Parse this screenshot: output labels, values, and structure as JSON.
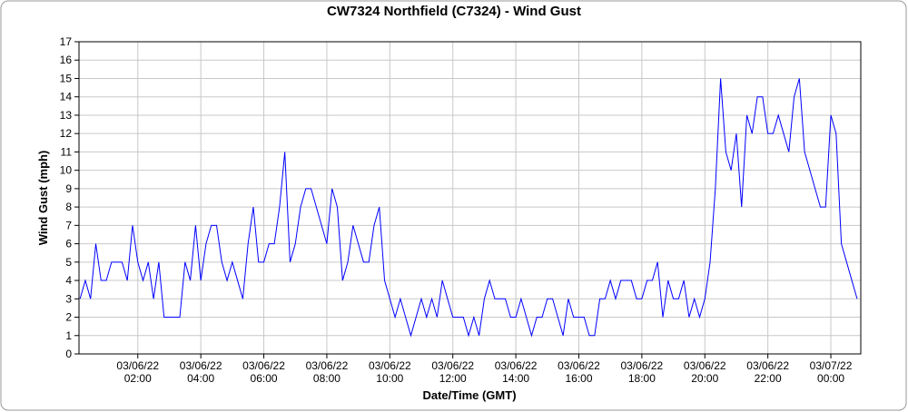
{
  "chart_data": {
    "type": "line",
    "title": "CW7324 Northfield (C7324) - Wind Gust",
    "x_label": "Date/Time (GMT)",
    "y_label": "Wind Gust (mph)",
    "x": [
      "03/06/22 00:10",
      "03/06/22 00:20",
      "03/06/22 00:30",
      "03/06/22 00:40",
      "03/06/22 00:50",
      "03/06/22 01:00",
      "03/06/22 01:10",
      "03/06/22 01:20",
      "03/06/22 01:30",
      "03/06/22 01:40",
      "03/06/22 01:50",
      "03/06/22 02:00",
      "03/06/22 02:10",
      "03/06/22 02:20",
      "03/06/22 02:30",
      "03/06/22 02:40",
      "03/06/22 02:50",
      "03/06/22 03:00",
      "03/06/22 03:10",
      "03/06/22 03:20",
      "03/06/22 03:30",
      "03/06/22 03:40",
      "03/06/22 03:50",
      "03/06/22 04:00",
      "03/06/22 04:10",
      "03/06/22 04:20",
      "03/06/22 04:30",
      "03/06/22 04:40",
      "03/06/22 04:50",
      "03/06/22 05:00",
      "03/06/22 05:10",
      "03/06/22 05:20",
      "03/06/22 05:30",
      "03/06/22 05:40",
      "03/06/22 05:50",
      "03/06/22 06:00",
      "03/06/22 06:10",
      "03/06/22 06:20",
      "03/06/22 06:30",
      "03/06/22 06:40",
      "03/06/22 06:50",
      "03/06/22 07:00",
      "03/06/22 07:10",
      "03/06/22 07:20",
      "03/06/22 07:30",
      "03/06/22 07:40",
      "03/06/22 07:50",
      "03/06/22 08:00",
      "03/06/22 08:10",
      "03/06/22 08:20",
      "03/06/22 08:30",
      "03/06/22 08:40",
      "03/06/22 08:50",
      "03/06/22 09:00",
      "03/06/22 09:10",
      "03/06/22 09:20",
      "03/06/22 09:30",
      "03/06/22 09:40",
      "03/06/22 09:50",
      "03/06/22 10:00",
      "03/06/22 10:10",
      "03/06/22 10:20",
      "03/06/22 10:30",
      "03/06/22 10:40",
      "03/06/22 10:50",
      "03/06/22 11:00",
      "03/06/22 11:10",
      "03/06/22 11:20",
      "03/06/22 11:30",
      "03/06/22 11:40",
      "03/06/22 11:50",
      "03/06/22 12:00",
      "03/06/22 12:10",
      "03/06/22 12:20",
      "03/06/22 12:30",
      "03/06/22 12:40",
      "03/06/22 12:50",
      "03/06/22 13:00",
      "03/06/22 13:10",
      "03/06/22 13:20",
      "03/06/22 13:30",
      "03/06/22 13:40",
      "03/06/22 13:50",
      "03/06/22 14:00",
      "03/06/22 14:10",
      "03/06/22 14:20",
      "03/06/22 14:30",
      "03/06/22 14:40",
      "03/06/22 14:50",
      "03/06/22 15:00",
      "03/06/22 15:10",
      "03/06/22 15:20",
      "03/06/22 15:30",
      "03/06/22 15:40",
      "03/06/22 15:50",
      "03/06/22 16:00",
      "03/06/22 16:10",
      "03/06/22 16:20",
      "03/06/22 16:30",
      "03/06/22 16:40",
      "03/06/22 16:50",
      "03/06/22 17:00",
      "03/06/22 17:10",
      "03/06/22 17:20",
      "03/06/22 17:30",
      "03/06/22 17:40",
      "03/06/22 17:50",
      "03/06/22 18:00",
      "03/06/22 18:10",
      "03/06/22 18:20",
      "03/06/22 18:30",
      "03/06/22 18:40",
      "03/06/22 18:50",
      "03/06/22 19:00",
      "03/06/22 19:10",
      "03/06/22 19:20",
      "03/06/22 19:30",
      "03/06/22 19:40",
      "03/06/22 19:50",
      "03/06/22 20:00",
      "03/06/22 20:10",
      "03/06/22 20:20",
      "03/06/22 20:30",
      "03/06/22 20:40",
      "03/06/22 20:50",
      "03/06/22 21:00",
      "03/06/22 21:10",
      "03/06/22 21:20",
      "03/06/22 21:30",
      "03/06/22 21:40",
      "03/06/22 21:50",
      "03/06/22 22:00",
      "03/06/22 22:10",
      "03/06/22 22:20",
      "03/06/22 22:30",
      "03/06/22 22:40",
      "03/06/22 22:50",
      "03/06/22 23:00",
      "03/06/22 23:10",
      "03/06/22 23:20",
      "03/06/22 23:30",
      "03/06/22 23:40",
      "03/06/22 23:50",
      "03/07/22 00:00",
      "03/07/22 00:10",
      "03/07/22 00:20",
      "03/07/22 00:30",
      "03/07/22 00:40",
      "03/07/22 00:50"
    ],
    "series": [
      {
        "name": "Wind Gust",
        "color": "#0000ff",
        "values": [
          3,
          4,
          3,
          6,
          4,
          4,
          5,
          5,
          5,
          4,
          7,
          5,
          4,
          5,
          3,
          5,
          2,
          2,
          2,
          2,
          5,
          4,
          7,
          4,
          6,
          7,
          7,
          5,
          4,
          5,
          4,
          3,
          6,
          8,
          5,
          5,
          6,
          6,
          8,
          11,
          5,
          6,
          8,
          9,
          9,
          8,
          7,
          6,
          9,
          8,
          4,
          5,
          7,
          6,
          5,
          5,
          7,
          8,
          4,
          3,
          2,
          3,
          2,
          1,
          2,
          3,
          2,
          3,
          2,
          4,
          3,
          2,
          2,
          2,
          1,
          2,
          1,
          3,
          4,
          3,
          3,
          3,
          2,
          2,
          3,
          2,
          1,
          2,
          2,
          3,
          3,
          2,
          1,
          3,
          2,
          2,
          2,
          1,
          1,
          3,
          3,
          4,
          3,
          4,
          4,
          4,
          3,
          3,
          4,
          4,
          5,
          2,
          4,
          3,
          3,
          4,
          2,
          3,
          2,
          3,
          5,
          9,
          15,
          11,
          10,
          12,
          8,
          13,
          12,
          14,
          14,
          12,
          12,
          13,
          12,
          11,
          14,
          15,
          11,
          10,
          9,
          8,
          8,
          13,
          12,
          6,
          5,
          4,
          3
        ]
      }
    ],
    "xlim": [
      "03/06/22 00:08",
      "03/07/22 00:57"
    ],
    "xticks": [
      "03/06/22 02:00",
      "03/06/22 04:00",
      "03/06/22 06:00",
      "03/06/22 08:00",
      "03/06/22 10:00",
      "03/06/22 12:00",
      "03/06/22 14:00",
      "03/06/22 16:00",
      "03/06/22 18:00",
      "03/06/22 20:00",
      "03/06/22 22:00",
      "03/07/22 00:00"
    ],
    "ylim": [
      0,
      17
    ],
    "yticks": [
      0,
      1,
      2,
      3,
      4,
      5,
      6,
      7,
      8,
      9,
      10,
      11,
      12,
      13,
      14,
      15,
      16,
      17
    ],
    "grid": true
  }
}
